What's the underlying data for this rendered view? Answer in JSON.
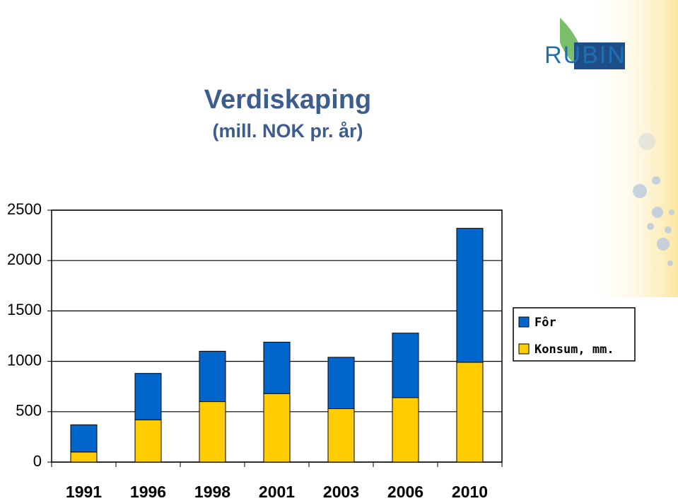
{
  "logo": "RUBIN",
  "chart_data": {
    "type": "stacked-bar",
    "title": "Verdiskaping",
    "subtitle": "(mill. NOK pr. år)",
    "categories": [
      "1991",
      "1996",
      "1998",
      "2001",
      "2003",
      "2006",
      "2010"
    ],
    "series": [
      {
        "name": "Konsum, mm.",
        "color": "#ffcc00",
        "values": [
          100,
          420,
          600,
          680,
          530,
          640,
          990
        ]
      },
      {
        "name": "Fôr",
        "color": "#0066cc",
        "values": [
          270,
          460,
          500,
          510,
          510,
          640,
          1330
        ]
      }
    ],
    "ylim": [
      0,
      2500
    ],
    "yticks": [
      0,
      500,
      1000,
      1500,
      2000,
      2500
    ],
    "grid": true,
    "legend": "right"
  }
}
